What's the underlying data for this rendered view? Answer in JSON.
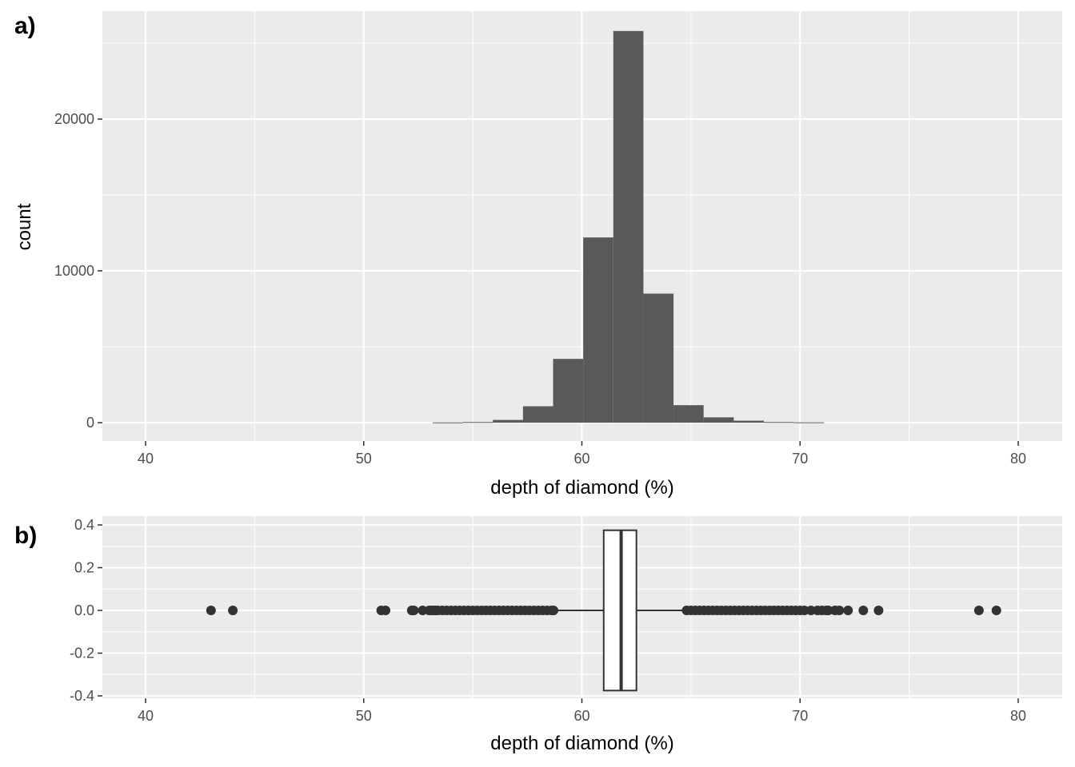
{
  "chart_data": [
    {
      "type": "bar",
      "panel_label": "a)",
      "xlabel": "depth of diamond (%)",
      "ylabel": "count",
      "xlim": [
        38,
        81.5
      ],
      "ylim": [
        -1200,
        27000
      ],
      "x_ticks": [
        40,
        50,
        60,
        70,
        80
      ],
      "y_ticks": [
        0,
        10000,
        20000
      ],
      "grid": true,
      "bar_color": "#595959",
      "panel_background": "#ebebeb",
      "bin_width": 1.38,
      "bin_starts": [
        53.16,
        54.54,
        55.92,
        57.3,
        58.68,
        60.06,
        61.44,
        62.82,
        64.2,
        65.58,
        66.96,
        68.34,
        69.72
      ],
      "values": [
        15,
        40,
        180,
        1080,
        4200,
        12200,
        25800,
        8500,
        1150,
        350,
        130,
        40,
        20
      ]
    },
    {
      "type": "boxplot",
      "panel_label": "b)",
      "xlabel": "depth of diamond (%)",
      "xlim": [
        38,
        81.5
      ],
      "ylim": [
        -0.42,
        0.42
      ],
      "x_ticks": [
        40,
        50,
        60,
        70,
        80
      ],
      "y_ticks": [
        -0.4,
        -0.2,
        0.0,
        0.2,
        0.4
      ],
      "y_tick_labels": [
        "-0.4",
        "-0.2",
        "0.0",
        "0.2",
        "0.4"
      ],
      "grid": true,
      "box": {
        "whisker_low": 58.8,
        "q1": 61.0,
        "median": 61.8,
        "q3": 62.5,
        "whisker_high": 64.7,
        "y_range": [
          -0.375,
          0.375
        ]
      },
      "outliers": [
        43.0,
        44.0,
        50.8,
        51.0,
        52.2,
        52.3,
        52.7,
        53.0,
        53.1,
        53.2,
        53.3,
        53.4,
        53.6,
        53.8,
        54.0,
        54.2,
        54.4,
        54.6,
        54.8,
        55.0,
        55.2,
        55.4,
        55.6,
        55.8,
        56.0,
        56.2,
        56.4,
        56.6,
        56.8,
        57.0,
        57.2,
        57.4,
        57.6,
        57.8,
        58.0,
        58.2,
        58.4,
        58.6,
        58.7,
        64.8,
        65.0,
        65.2,
        65.4,
        65.6,
        65.8,
        66.0,
        66.2,
        66.4,
        66.6,
        66.8,
        67.0,
        67.2,
        67.4,
        67.6,
        67.8,
        68.0,
        68.2,
        68.4,
        68.6,
        68.8,
        69.0,
        69.2,
        69.4,
        69.6,
        69.8,
        70.0,
        70.2,
        70.5,
        70.8,
        71.0,
        71.2,
        71.3,
        71.6,
        71.8,
        72.2,
        72.9,
        73.6,
        78.2,
        79.0
      ]
    }
  ]
}
